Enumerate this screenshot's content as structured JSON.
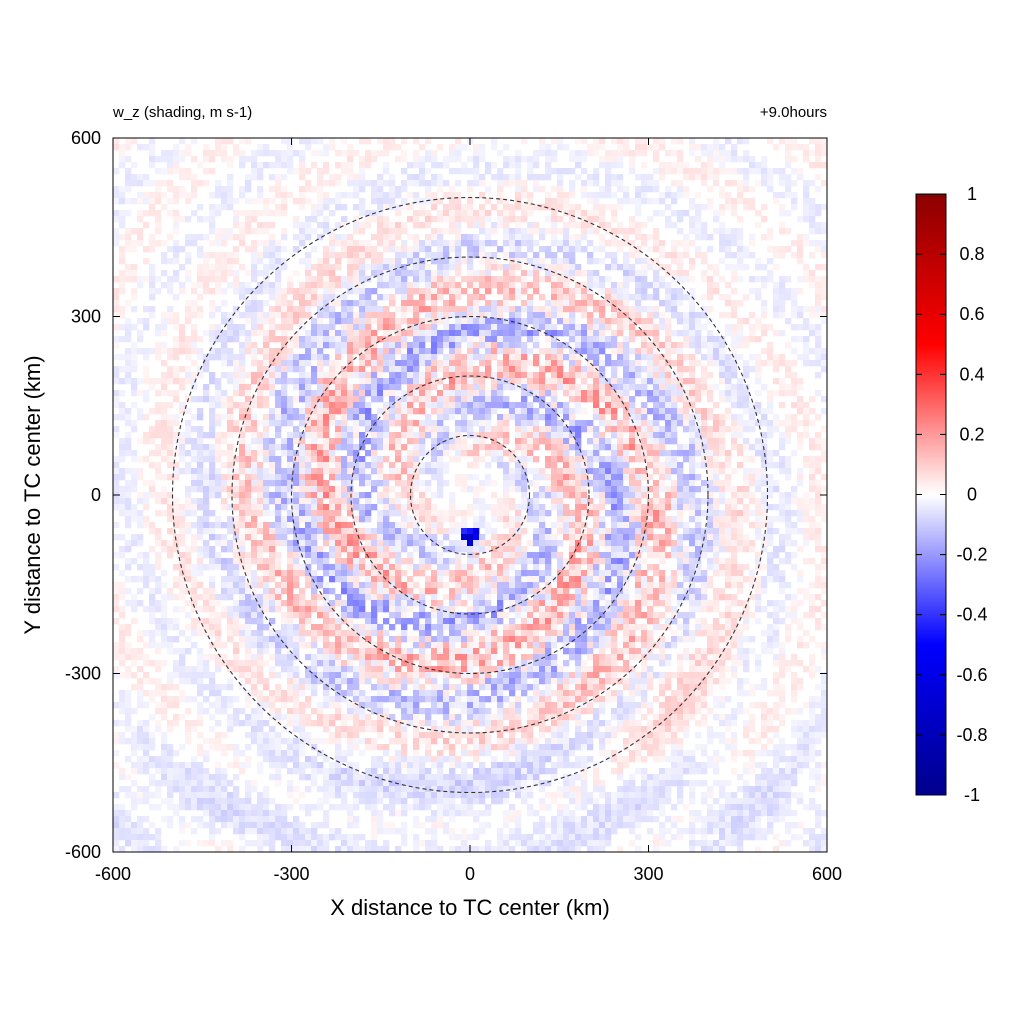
{
  "chart_data": {
    "type": "heatmap",
    "title_left": "w_z (shading, m s-1)",
    "title_right": "+9.0hours",
    "xlabel": "X distance to TC center (km)",
    "ylabel": "Y distance to TC center (km)",
    "xlim": [
      -600,
      600
    ],
    "ylim": [
      -600,
      600
    ],
    "xticks": [
      -600,
      -300,
      0,
      300,
      600
    ],
    "yticks": [
      -600,
      -300,
      0,
      300,
      600
    ],
    "xtick_labels": [
      "-600",
      "-300",
      "0",
      "300",
      "600"
    ],
    "ytick_labels": [
      "-600",
      "-300",
      "0",
      "300",
      "600"
    ],
    "field_range": [
      -1,
      1
    ],
    "field_character": "weak alternating positive/negative noise (mostly |w| < 0.3 m s-1), strongest annuli 100-400 km, small negative feature near (0, -70 km)",
    "contours": {
      "style": "dashed",
      "color": "#333333",
      "center": [
        0,
        0
      ],
      "radii_km": [
        100,
        200,
        300,
        400,
        500
      ]
    },
    "colorbar": {
      "min": -1,
      "max": 1,
      "ticks": [
        1,
        0.8,
        0.6,
        0.4,
        0.2,
        0,
        -0.2,
        -0.4,
        -0.6,
        -0.8,
        -1
      ],
      "tick_labels": [
        "1",
        "0.8",
        "0.6",
        "0.4",
        "0.2",
        "0",
        "-0.2",
        "-0.4",
        "-0.6",
        "-0.8",
        "-1"
      ],
      "colors": [
        "#00008b",
        "#0000ff",
        "#ffffff",
        "#ff0000",
        "#8b0000"
      ],
      "orientation": "vertical"
    }
  }
}
